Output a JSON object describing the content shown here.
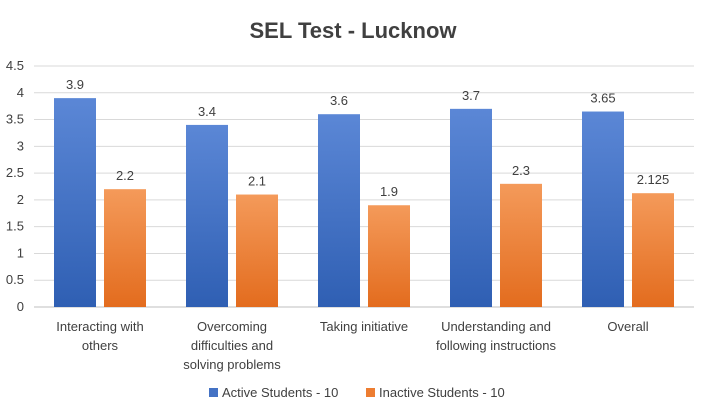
{
  "chart_data": {
    "type": "bar",
    "title": "SEL Test - Lucknow",
    "categories": [
      [
        "Interacting with",
        "others"
      ],
      [
        "Overcoming",
        "difficulties and",
        "solving problems"
      ],
      [
        "Taking initiative"
      ],
      [
        "Understanding and",
        "following instructions"
      ],
      [
        "Overall"
      ]
    ],
    "series": [
      {
        "name": "Active Students - 10",
        "values": [
          3.9,
          3.4,
          3.6,
          3.7,
          3.65
        ],
        "labels": [
          "3.9",
          "3.4",
          "3.6",
          "3.7",
          "3.65"
        ],
        "color": "#4472C4"
      },
      {
        "name": "Inactive Students - 10",
        "values": [
          2.2,
          2.1,
          1.9,
          2.3,
          2.125
        ],
        "labels": [
          "2.2",
          "2.1",
          "1.9",
          "2.3",
          "2.125"
        ],
        "color": "#ED7D31"
      }
    ],
    "ylim": [
      0,
      4.5
    ],
    "yticks": [
      "0",
      "0.5",
      "1",
      "1.5",
      "2",
      "2.5",
      "3",
      "3.5",
      "4",
      "4.5"
    ],
    "grid": true,
    "legend": "bottom"
  }
}
